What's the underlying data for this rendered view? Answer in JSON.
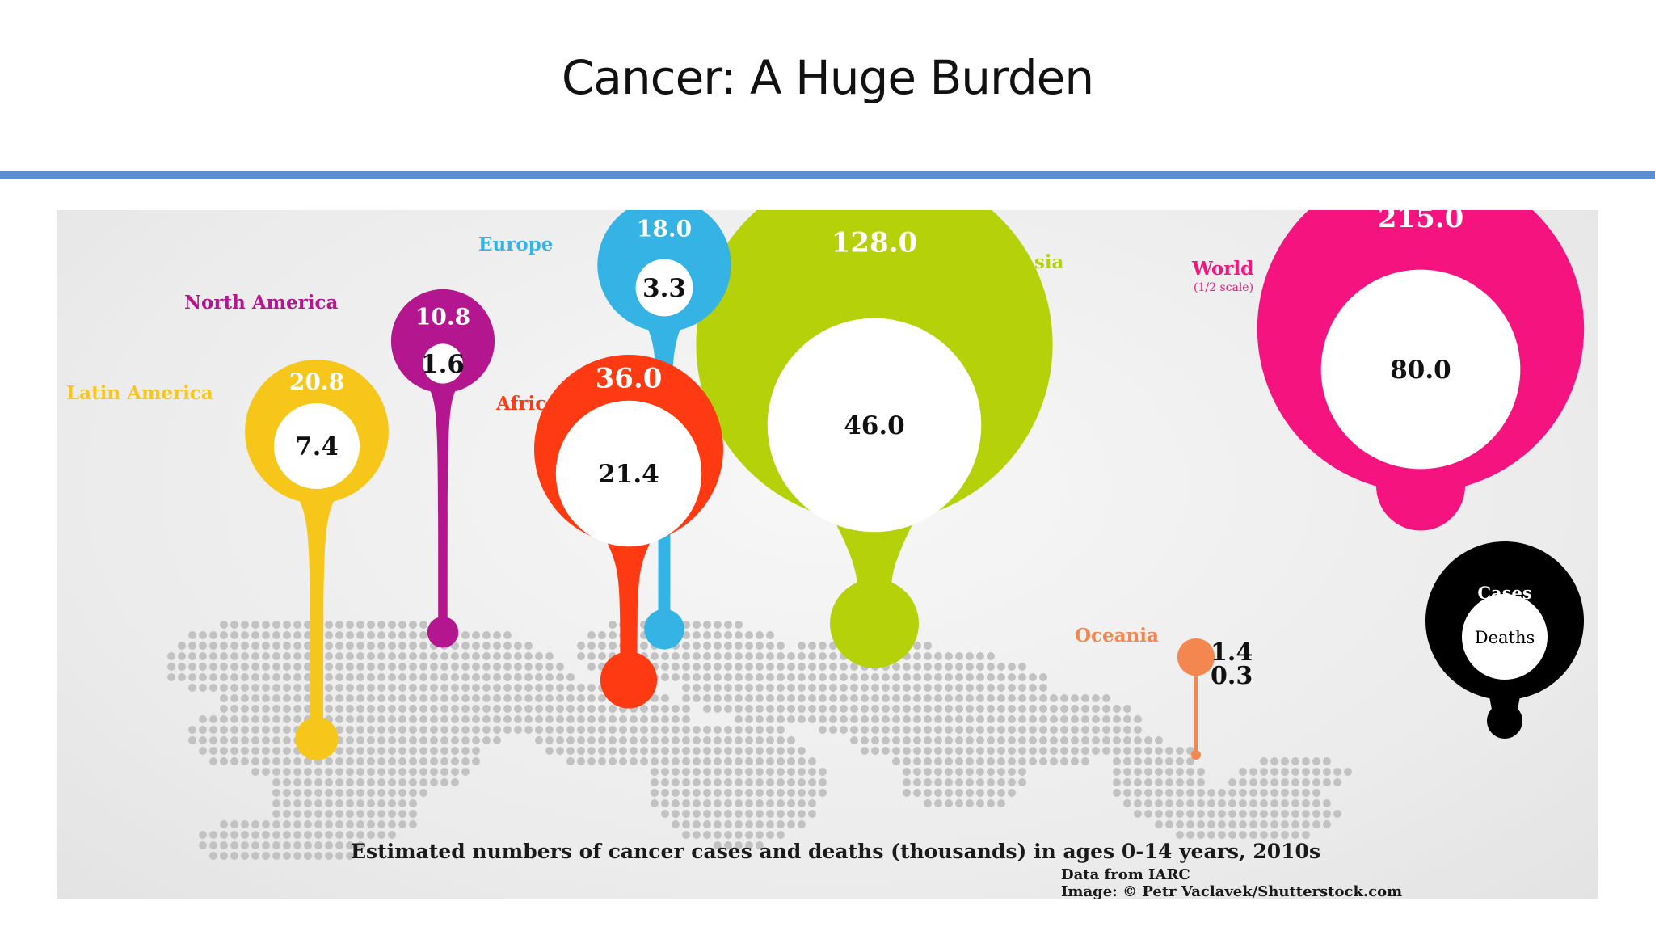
{
  "slide": {
    "title": "Cancer: A Huge Burden"
  },
  "chart_data": {
    "type": "bubble-map",
    "title": "Estimated numbers of cancer cases and deaths (thousands) in ages 0-14 years, 2010s",
    "source": "Data from IARC",
    "credit": "Image: © Petr Vaclavek/Shutterstock.com",
    "legend": {
      "cases_label": "Cases",
      "deaths_label": "Deaths",
      "placement": "right"
    },
    "regions": [
      {
        "name": "Latin America",
        "cases": 20.8,
        "deaths": 7.4,
        "cases_text": "20.8",
        "deaths_text": "7.4",
        "color": "#f7c61b"
      },
      {
        "name": "North America",
        "cases": 10.8,
        "deaths": 1.6,
        "cases_text": "10.8",
        "deaths_text": "1.6",
        "color": "#b3168e"
      },
      {
        "name": "Europe",
        "cases": 18.0,
        "deaths": 3.3,
        "cases_text": "18.0",
        "deaths_text": "3.3",
        "color": "#34b3e4"
      },
      {
        "name": "Africa",
        "cases": 36.0,
        "deaths": 21.4,
        "cases_text": "36.0",
        "deaths_text": "21.4",
        "color": "#fd3a12"
      },
      {
        "name": "Asia",
        "cases": 128.0,
        "deaths": 46.0,
        "cases_text": "128.0",
        "deaths_text": "46.0",
        "color": "#b4d10a"
      },
      {
        "name": "World",
        "note": "(1/2 scale)",
        "cases": 215.0,
        "deaths": 80.0,
        "cases_text": "215.0",
        "deaths_text": "80.0",
        "color": "#f5137f"
      },
      {
        "name": "Oceania",
        "cases": 1.4,
        "deaths": 0.3,
        "cases_text": "1.4",
        "deaths_text": "0.3",
        "color": "#f4864f"
      }
    ]
  }
}
